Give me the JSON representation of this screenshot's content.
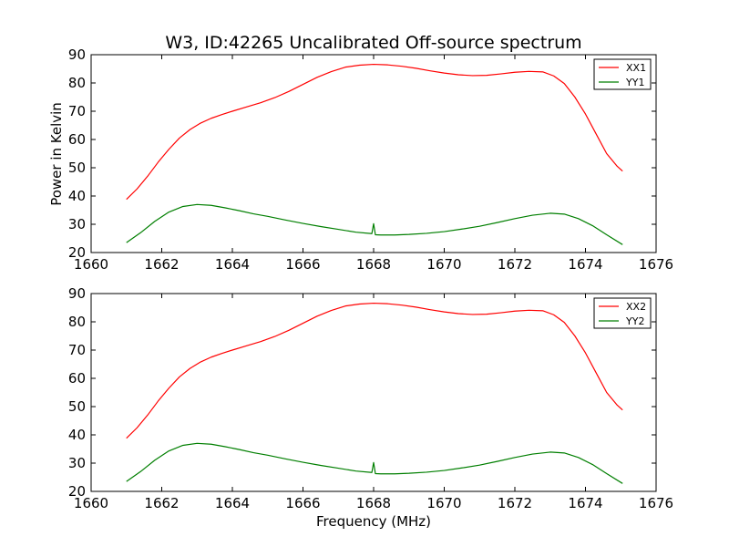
{
  "title": "W3, ID:42265 Uncalibrated Off-source spectrum",
  "colors": {
    "XX": "#ff0000",
    "YY": "#007f00",
    "axes": "#000000",
    "background": "#ffffff"
  },
  "chart_data": [
    {
      "type": "line",
      "title": "W3, ID:42265 Uncalibrated Off-source spectrum",
      "xlabel": "",
      "ylabel": "Power in Kelvin",
      "xlim": [
        1660,
        1676
      ],
      "ylim": [
        20,
        90
      ],
      "x_ticks": [
        1660,
        1662,
        1664,
        1666,
        1668,
        1670,
        1672,
        1674,
        1676
      ],
      "y_ticks": [
        20,
        30,
        40,
        50,
        60,
        70,
        80,
        90
      ],
      "grid": false,
      "legend_position": "top-right",
      "series": [
        {
          "name": "XX1",
          "color": "#ff0000",
          "x": [
            1661.0,
            1661.3,
            1661.6,
            1661.9,
            1662.2,
            1662.5,
            1662.8,
            1663.1,
            1663.4,
            1663.7,
            1664.0,
            1664.4,
            1664.8,
            1665.2,
            1665.6,
            1666.0,
            1666.4,
            1666.8,
            1667.2,
            1667.6,
            1668.0,
            1668.4,
            1668.8,
            1669.2,
            1669.6,
            1670.0,
            1670.4,
            1670.8,
            1671.2,
            1671.6,
            1672.0,
            1672.4,
            1672.8,
            1673.1,
            1673.4,
            1673.7,
            1674.0,
            1674.3,
            1674.6,
            1674.9,
            1675.05
          ],
          "y": [
            38.8,
            42.5,
            47.0,
            52.0,
            56.5,
            60.5,
            63.5,
            65.8,
            67.5,
            68.8,
            70.0,
            71.5,
            73.0,
            74.8,
            77.0,
            79.5,
            82.0,
            84.0,
            85.6,
            86.3,
            86.6,
            86.4,
            85.9,
            85.2,
            84.3,
            83.5,
            82.9,
            82.6,
            82.7,
            83.2,
            83.8,
            84.1,
            83.9,
            82.5,
            79.8,
            75.0,
            69.0,
            62.0,
            55.0,
            50.5,
            48.8
          ]
        },
        {
          "name": "YY1",
          "color": "#007f00",
          "x": [
            1661.0,
            1661.4,
            1661.8,
            1662.2,
            1662.6,
            1663.0,
            1663.4,
            1663.8,
            1664.2,
            1664.6,
            1665.0,
            1665.5,
            1666.0,
            1666.5,
            1667.0,
            1667.5,
            1667.95,
            1668.0,
            1668.05,
            1668.2,
            1668.6,
            1669.0,
            1669.5,
            1670.0,
            1670.5,
            1671.0,
            1671.5,
            1672.0,
            1672.5,
            1673.0,
            1673.4,
            1673.8,
            1674.2,
            1674.6,
            1675.05
          ],
          "y": [
            23.5,
            27.0,
            31.0,
            34.3,
            36.3,
            37.0,
            36.7,
            35.8,
            34.8,
            33.7,
            32.8,
            31.5,
            30.3,
            29.2,
            28.2,
            27.2,
            26.7,
            30.2,
            26.3,
            26.2,
            26.2,
            26.4,
            26.8,
            27.4,
            28.3,
            29.3,
            30.6,
            32.0,
            33.2,
            33.9,
            33.6,
            32.0,
            29.5,
            26.3,
            22.8
          ]
        }
      ]
    },
    {
      "type": "line",
      "title": "",
      "xlabel": "Frequency (MHz)",
      "ylabel": "",
      "xlim": [
        1660,
        1676
      ],
      "ylim": [
        20,
        90
      ],
      "x_ticks": [
        1660,
        1662,
        1664,
        1666,
        1668,
        1670,
        1672,
        1674,
        1676
      ],
      "y_ticks": [
        20,
        30,
        40,
        50,
        60,
        70,
        80,
        90
      ],
      "grid": false,
      "legend_position": "top-right",
      "series": [
        {
          "name": "XX2",
          "color": "#ff0000",
          "x": [
            1661.0,
            1661.3,
            1661.6,
            1661.9,
            1662.2,
            1662.5,
            1662.8,
            1663.1,
            1663.4,
            1663.7,
            1664.0,
            1664.4,
            1664.8,
            1665.2,
            1665.6,
            1666.0,
            1666.4,
            1666.8,
            1667.2,
            1667.6,
            1668.0,
            1668.4,
            1668.8,
            1669.2,
            1669.6,
            1670.0,
            1670.4,
            1670.8,
            1671.2,
            1671.6,
            1672.0,
            1672.4,
            1672.8,
            1673.1,
            1673.4,
            1673.7,
            1674.0,
            1674.3,
            1674.6,
            1674.9,
            1675.05
          ],
          "y": [
            38.8,
            42.5,
            47.0,
            52.0,
            56.5,
            60.5,
            63.5,
            65.8,
            67.5,
            68.8,
            70.0,
            71.5,
            73.0,
            74.8,
            77.0,
            79.5,
            82.0,
            84.0,
            85.6,
            86.3,
            86.6,
            86.4,
            85.9,
            85.2,
            84.3,
            83.5,
            82.9,
            82.6,
            82.7,
            83.2,
            83.8,
            84.1,
            83.9,
            82.5,
            79.8,
            75.0,
            69.0,
            62.0,
            55.0,
            50.5,
            48.8
          ]
        },
        {
          "name": "YY2",
          "color": "#007f00",
          "x": [
            1661.0,
            1661.4,
            1661.8,
            1662.2,
            1662.6,
            1663.0,
            1663.4,
            1663.8,
            1664.2,
            1664.6,
            1665.0,
            1665.5,
            1666.0,
            1666.5,
            1667.0,
            1667.5,
            1667.95,
            1668.0,
            1668.05,
            1668.2,
            1668.6,
            1669.0,
            1669.5,
            1670.0,
            1670.5,
            1671.0,
            1671.5,
            1672.0,
            1672.5,
            1673.0,
            1673.4,
            1673.8,
            1674.2,
            1674.6,
            1675.05
          ],
          "y": [
            23.5,
            27.0,
            31.0,
            34.3,
            36.3,
            37.0,
            36.7,
            35.8,
            34.8,
            33.7,
            32.8,
            31.5,
            30.3,
            29.2,
            28.2,
            27.2,
            26.7,
            30.2,
            26.3,
            26.2,
            26.2,
            26.4,
            26.8,
            27.4,
            28.3,
            29.3,
            30.6,
            32.0,
            33.2,
            33.9,
            33.6,
            32.0,
            29.5,
            26.3,
            22.8
          ]
        }
      ]
    }
  ]
}
